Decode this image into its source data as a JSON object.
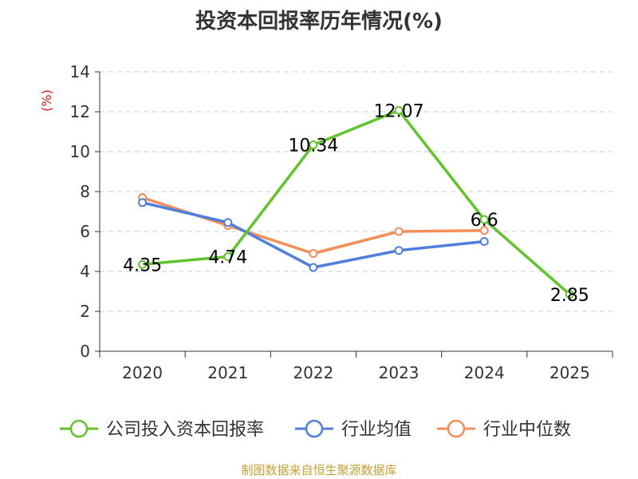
{
  "chart_data": {
    "type": "line",
    "title": "投资本回报率历年情况(%)",
    "ylabel": "(%)",
    "xlabel": "",
    "categories": [
      "2020",
      "2021",
      "2022",
      "2023",
      "2024",
      "2025"
    ],
    "ylim": [
      0,
      14
    ],
    "yticks": [
      0,
      2,
      4,
      6,
      8,
      10,
      12,
      14
    ],
    "grid": true,
    "legend_position": "bottom",
    "series": [
      {
        "name": "公司投入资本回报率",
        "color": "#5fc52b",
        "values": [
          4.35,
          4.74,
          10.34,
          12.07,
          6.6,
          2.85
        ],
        "labels": [
          "4.35",
          "4.74",
          "10.34",
          "12.07",
          "6.6",
          "2.85"
        ],
        "show_labels": true
      },
      {
        "name": "行业均值",
        "color": "#4f7fdc",
        "values": [
          7.45,
          6.45,
          4.2,
          5.05,
          5.5,
          null
        ],
        "show_labels": false
      },
      {
        "name": "行业中位数",
        "color": "#f48e56",
        "values": [
          7.7,
          6.3,
          4.9,
          6.0,
          6.05,
          null
        ],
        "show_labels": false
      }
    ],
    "unit_color": "#dd1111"
  },
  "footer": {
    "source": "制图数据来自恒生聚源数据库"
  }
}
